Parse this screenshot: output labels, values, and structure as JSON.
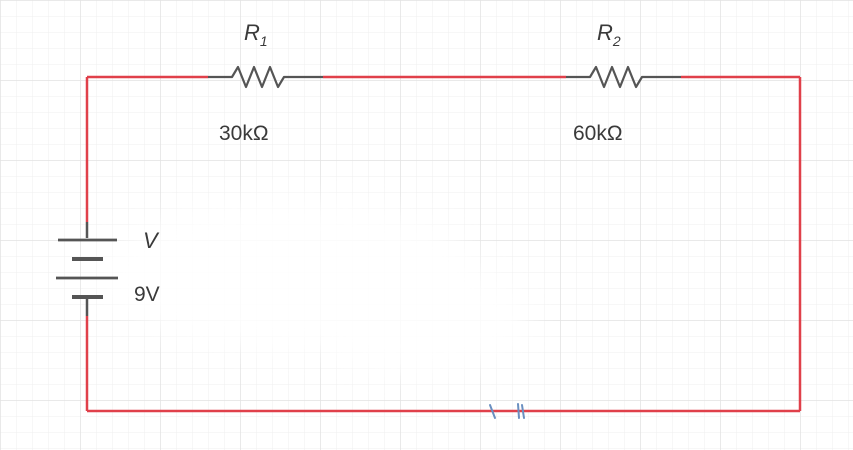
{
  "circuit": {
    "resistor_1": {
      "symbol": "R",
      "subscript": "1",
      "value": "30kΩ"
    },
    "resistor_2": {
      "symbol": "R",
      "subscript": "2",
      "value": "60kΩ"
    },
    "battery": {
      "symbol": "V",
      "value": "9V"
    }
  },
  "colors": {
    "wire": "#e0404a",
    "component": "#555555",
    "grid": "#e6e6e6",
    "smudge": "#6a8fc0"
  }
}
